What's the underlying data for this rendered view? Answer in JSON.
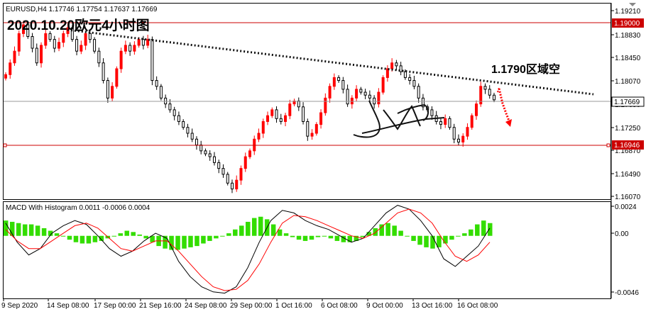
{
  "header": {
    "symbol_info": "EURUSD,H4  1.17746 1.17754 1.17637 1.17669",
    "annotation_title": "2020.10.20欧元4小时图",
    "zone_label": "1.1790区域空"
  },
  "price_panel": {
    "price_labels": [
      "1.19210",
      "1.18830",
      "1.18450",
      "1.18070",
      "1.17690",
      "1.17250",
      "1.16870",
      "1.16490",
      "1.16070"
    ],
    "resistance_tag": "1.19000",
    "current_tag": "1.17669",
    "support_tag": "1.16946"
  },
  "macd_panel": {
    "title": "MACD With Histogram 0.0011 -0.0006 0.0004",
    "labels": [
      "0.0024",
      "0.00",
      "-0.0046"
    ]
  },
  "time_axis": [
    "9 Sep 2020",
    "14 Sep 08:00",
    "17 Sep 00:00",
    "21 Sep 16:00",
    "24 Sep 08:00",
    "29 Sep 00:00",
    "1 Oct 16:00",
    "6 Oct 08:00",
    "9 Oct 00:00",
    "13 Oct 16:00",
    "16 Oct 08:00"
  ],
  "colors": {
    "bull": "#ff0000",
    "bear": "#000000",
    "level_line": "#cc0000",
    "histogram": "#33dd00",
    "macd_line": "#000000",
    "signal_line": "#ff0000"
  },
  "chart_data": [
    {
      "type": "candlestick",
      "symbol": "EURUSD",
      "timeframe": "H4",
      "ylim": [
        1.16,
        1.193
      ],
      "horizontal_levels": [
        1.19,
        1.17669,
        1.16946
      ],
      "trendline": {
        "from": [
          "9 Sep 2020",
          1.191
        ],
        "to": [
          "20 Oct",
          1.179
        ],
        "style": "dotted"
      },
      "arrow": {
        "from": 1.179,
        "to": 1.174,
        "style": "dotted",
        "color": "#ff0000"
      },
      "closes": [
        1.181,
        1.183,
        1.185,
        1.188,
        1.1895,
        1.1875,
        1.1855,
        1.183,
        1.186,
        1.188,
        1.187,
        1.1855,
        1.1865,
        1.188,
        1.189,
        1.187,
        1.185,
        1.186,
        1.188,
        1.187,
        1.185,
        1.183,
        1.18,
        1.177,
        1.179,
        1.182,
        1.185,
        1.186,
        1.185,
        1.186,
        1.187,
        1.186,
        1.187,
        1.18,
        1.179,
        1.177,
        1.176,
        1.175,
        1.174,
        1.173,
        1.172,
        1.171,
        1.17,
        1.169,
        1.168,
        1.1675,
        1.167,
        1.166,
        1.165,
        1.164,
        1.1625,
        1.1615,
        1.163,
        1.165,
        1.167,
        1.168,
        1.17,
        1.171,
        1.173,
        1.174,
        1.175,
        1.1735,
        1.173,
        1.174,
        1.176,
        1.1765,
        1.1755,
        1.173,
        1.1705,
        1.171,
        1.1725,
        1.1745,
        1.177,
        1.179,
        1.1805,
        1.18,
        1.1785,
        1.176,
        1.177,
        1.1785,
        1.178,
        1.1775,
        1.177,
        1.176,
        1.178,
        1.1805,
        1.182,
        1.183,
        1.1825,
        1.1815,
        1.1805,
        1.18,
        1.179,
        1.177,
        1.1755,
        1.175,
        1.174,
        1.173,
        1.1725,
        1.1735,
        1.172,
        1.17,
        1.1695,
        1.1705,
        1.172,
        1.174,
        1.176,
        1.179,
        1.1785,
        1.1775,
        1.1767
      ]
    },
    {
      "type": "line",
      "title": "MACD With Histogram 0.0011 -0.0006 0.0004",
      "ylim": [
        -0.0048,
        0.0026
      ],
      "series": [
        {
          "name": "Histogram",
          "values": [
            0.0012,
            0.0011,
            0.001,
            0.0009,
            0.0009,
            0.0008,
            0.0006,
            0.0004,
            0.0002,
            0.0,
            -0.0003,
            -0.0005,
            -0.0006,
            -0.0006,
            -0.0005,
            -0.0004,
            -0.0002,
            0.0,
            0.0002,
            0.0004,
            0.0003,
            0.0001,
            -0.0002,
            -0.0005,
            -0.0008,
            -0.001,
            -0.0011,
            -0.0011,
            -0.001,
            -0.0009,
            -0.0008,
            -0.0006,
            -0.0004,
            -0.0002,
            0.0,
            0.0002,
            0.0005,
            0.0008,
            0.0011,
            0.0014,
            0.0015,
            0.0013,
            0.0009,
            0.0005,
            0.0002,
            -0.0001,
            -0.0003,
            -0.0004,
            -0.0003,
            -0.0001,
            0.0,
            -0.0002,
            -0.0004,
            -0.0005,
            -0.0005,
            -0.0004,
            -0.0001,
            0.0003,
            0.0006,
            0.0009,
            0.001,
            0.0008,
            0.0004,
            0.0,
            -0.0004,
            -0.0007,
            -0.0009,
            -0.001,
            -0.0009,
            -0.0006,
            -0.0003,
            0.0,
            0.0002,
            0.0005,
            0.0009,
            0.0012,
            0.001
          ]
        },
        {
          "name": "MACD",
          "values": [
            0.001,
            -0.0005,
            -0.0015,
            -0.001,
            0.0002,
            0.0008,
            0.0012,
            0.0009,
            0.0,
            -0.001,
            -0.0016,
            -0.0012,
            -0.0004,
            0.0002,
            -0.0002,
            -0.002,
            -0.0032,
            -0.004,
            -0.0044,
            -0.0045,
            -0.004,
            -0.0025,
            -0.0005,
            0.0012,
            0.002,
            0.0018,
            0.0012,
            0.0008,
            0.0005,
            0.0,
            -0.0005,
            -0.0002,
            0.0008,
            0.0018,
            0.0024,
            0.0021,
            0.0012,
            0.0,
            -0.0018,
            -0.0024,
            -0.0016,
            -0.0008,
            0.0006
          ]
        },
        {
          "name": "Signal",
          "values": [
            0.0005,
            -0.0004,
            -0.001,
            -0.001,
            -0.0004,
            0.0002,
            0.0008,
            0.001,
            0.0006,
            -0.0002,
            -0.001,
            -0.0012,
            -0.0008,
            -0.0004,
            -0.0004,
            -0.0012,
            -0.0022,
            -0.0032,
            -0.004,
            -0.0043,
            -0.0042,
            -0.0035,
            -0.0022,
            -0.0005,
            0.001,
            0.0016,
            0.0015,
            0.0012,
            0.0008,
            0.0004,
            0.0,
            -0.0002,
            0.0002,
            0.001,
            0.0018,
            0.0021,
            0.0018,
            0.001,
            -0.0004,
            -0.0016,
            -0.002,
            -0.0015,
            -0.0005
          ]
        }
      ]
    }
  ]
}
